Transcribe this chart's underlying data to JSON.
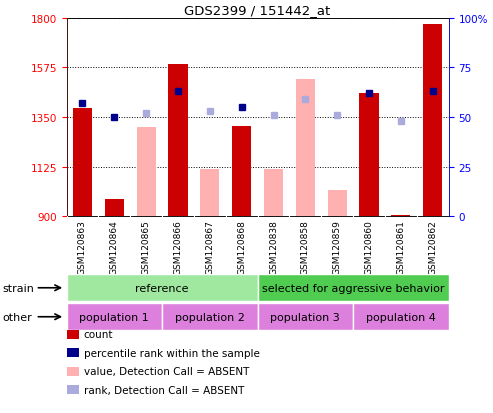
{
  "title": "GDS2399 / 151442_at",
  "samples": [
    "GSM120863",
    "GSM120864",
    "GSM120865",
    "GSM120866",
    "GSM120867",
    "GSM120868",
    "GSM120838",
    "GSM120858",
    "GSM120859",
    "GSM120860",
    "GSM120861",
    "GSM120862"
  ],
  "count_values": [
    1390,
    980,
    null,
    1590,
    null,
    1310,
    null,
    null,
    null,
    1460,
    905,
    1770
  ],
  "absent_values": [
    null,
    null,
    1305,
    null,
    1115,
    null,
    1115,
    1520,
    1020,
    null,
    null,
    null
  ],
  "rank_present": [
    57,
    50,
    null,
    63,
    null,
    55,
    null,
    null,
    null,
    62,
    null,
    63
  ],
  "rank_absent": [
    null,
    null,
    52,
    null,
    53,
    null,
    51,
    59,
    51,
    null,
    48,
    null
  ],
  "ymin": 900,
  "ymax": 1800,
  "yticks_left": [
    900,
    1125,
    1350,
    1575,
    1800
  ],
  "yticks_right": [
    0,
    25,
    50,
    75,
    100
  ],
  "count_color": "#cc0000",
  "absent_color": "#ffb0b0",
  "rank_present_color": "#00008b",
  "rank_absent_color": "#aaaadd",
  "strain_ref_color": "#a0e8a0",
  "strain_sel_color": "#50cc50",
  "pop_color": "#dd80dd",
  "bg_color": "#d3d3d3",
  "plot_bg": "#ffffff",
  "legend_items": [
    {
      "label": "count",
      "color": "#cc0000"
    },
    {
      "label": "percentile rank within the sample",
      "color": "#00008b"
    },
    {
      "label": "value, Detection Call = ABSENT",
      "color": "#ffb0b0"
    },
    {
      "label": "rank, Detection Call = ABSENT",
      "color": "#aaaadd"
    }
  ]
}
